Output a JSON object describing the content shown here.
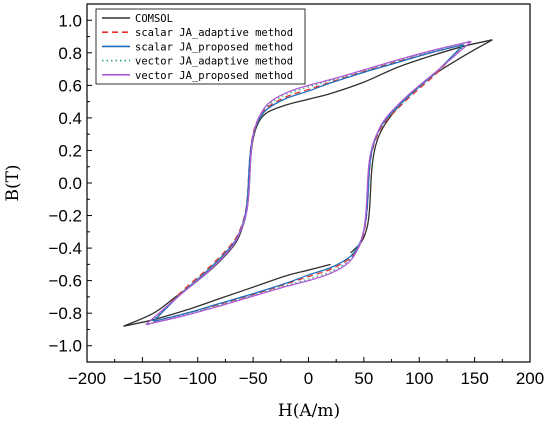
{
  "chart_data": {
    "type": "line",
    "title": "",
    "xlabel": "H(A/m)",
    "ylabel": "B(T)",
    "xlim": [
      -200,
      200
    ],
    "ylim": [
      -1.1,
      1.1
    ],
    "xticks": [
      -200,
      -150,
      -100,
      -50,
      0,
      50,
      100,
      150,
      200
    ],
    "yticks": [
      1.0,
      0.8,
      0.6,
      0.4,
      0.2,
      0.0,
      -0.2,
      -0.4,
      -0.6,
      -0.8,
      -1.0
    ],
    "xtick_labels": [
      "−200",
      "−150",
      "−100",
      "−50",
      "0",
      "50",
      "100",
      "150",
      "200"
    ],
    "ytick_labels": [
      "1.0",
      "0.8",
      "0.6",
      "0.4",
      "0.2",
      "0.0",
      "−0.2",
      "−0.4",
      "−0.6",
      "−0.8",
      "−1.0"
    ],
    "legend_position": "top-left",
    "grid": false,
    "series": [
      {
        "name": "COMSOL",
        "color": "#303030",
        "dash": "solid",
        "descending": [
          [
            166,
            0.88
          ],
          [
            140,
            0.84
          ],
          [
            110,
            0.78
          ],
          [
            80,
            0.71
          ],
          [
            50,
            0.62
          ],
          [
            20,
            0.55
          ],
          [
            0,
            0.515
          ],
          [
            -20,
            0.48
          ],
          [
            -38,
            0.43
          ],
          [
            -46,
            0.36
          ],
          [
            -50,
            0.27
          ],
          [
            -52,
            0.17
          ],
          [
            -53,
            0.05
          ],
          [
            -54,
            -0.07
          ],
          [
            -56,
            -0.18
          ],
          [
            -60,
            -0.28
          ],
          [
            -66,
            -0.37
          ],
          [
            -80,
            -0.48
          ],
          [
            -100,
            -0.6
          ],
          [
            -120,
            -0.7
          ],
          [
            -140,
            -0.8
          ],
          [
            -167,
            -0.88
          ]
        ],
        "ascending": [
          [
            -167,
            -0.88
          ],
          [
            -140,
            -0.84
          ],
          [
            -110,
            -0.78
          ],
          [
            -80,
            -0.71
          ],
          [
            -50,
            -0.64
          ],
          [
            -20,
            -0.57
          ],
          [
            0,
            -0.535
          ],
          [
            20,
            -0.5
          ]
        ],
        "upper_ascending": [
          [
            38,
            -0.43
          ],
          [
            48,
            -0.36
          ],
          [
            53,
            -0.27
          ],
          [
            55,
            -0.17
          ],
          [
            56,
            -0.05
          ],
          [
            57,
            0.07
          ],
          [
            59,
            0.18
          ],
          [
            63,
            0.28
          ],
          [
            70,
            0.37
          ],
          [
            85,
            0.5
          ],
          [
            110,
            0.65
          ],
          [
            140,
            0.78
          ],
          [
            166,
            0.88
          ]
        ]
      },
      {
        "name": "scalar JA_adaptive method",
        "color": "#e8302a",
        "dash": "dashed",
        "descending": [
          [
            140,
            0.85
          ],
          [
            110,
            0.8
          ],
          [
            80,
            0.745
          ],
          [
            50,
            0.685
          ],
          [
            20,
            0.62
          ],
          [
            0,
            0.575
          ],
          [
            -20,
            0.53
          ],
          [
            -38,
            0.46
          ],
          [
            -47,
            0.37
          ],
          [
            -51,
            0.27
          ],
          [
            -53,
            0.16
          ],
          [
            -54,
            0.05
          ],
          [
            -55,
            -0.07
          ],
          [
            -57,
            -0.18
          ],
          [
            -62,
            -0.29
          ],
          [
            -70,
            -0.38
          ],
          [
            -90,
            -0.52
          ],
          [
            -115,
            -0.67
          ],
          [
            -140,
            -0.85
          ]
        ],
        "ascending": [
          [
            -140,
            -0.85
          ],
          [
            -110,
            -0.8
          ],
          [
            -80,
            -0.745
          ],
          [
            -50,
            -0.685
          ],
          [
            -20,
            -0.62
          ],
          [
            0,
            -0.575
          ],
          [
            20,
            -0.53
          ],
          [
            38,
            -0.46
          ],
          [
            47,
            -0.37
          ],
          [
            51,
            -0.27
          ],
          [
            53,
            -0.16
          ],
          [
            54,
            -0.05
          ],
          [
            55,
            0.07
          ],
          [
            57,
            0.18
          ],
          [
            62,
            0.29
          ],
          [
            70,
            0.38
          ],
          [
            90,
            0.52
          ],
          [
            115,
            0.67
          ],
          [
            140,
            0.85
          ]
        ]
      },
      {
        "name": "scalar JA_proposed method",
        "color": "#1f6fbf",
        "dash": "solid",
        "descending": [
          [
            140,
            0.85
          ],
          [
            110,
            0.8
          ],
          [
            80,
            0.74
          ],
          [
            50,
            0.68
          ],
          [
            20,
            0.615
          ],
          [
            0,
            0.565
          ],
          [
            -20,
            0.52
          ],
          [
            -38,
            0.45
          ],
          [
            -47,
            0.36
          ],
          [
            -51,
            0.26
          ],
          [
            -53,
            0.15
          ],
          [
            -54,
            0.04
          ],
          [
            -55,
            -0.08
          ],
          [
            -57,
            -0.19
          ],
          [
            -62,
            -0.3
          ],
          [
            -70,
            -0.39
          ],
          [
            -90,
            -0.53
          ],
          [
            -115,
            -0.68
          ],
          [
            -140,
            -0.85
          ]
        ],
        "ascending": [
          [
            -140,
            -0.85
          ],
          [
            -110,
            -0.8
          ],
          [
            -80,
            -0.74
          ],
          [
            -50,
            -0.68
          ],
          [
            -20,
            -0.615
          ],
          [
            0,
            -0.565
          ],
          [
            20,
            -0.52
          ],
          [
            38,
            -0.45
          ],
          [
            47,
            -0.36
          ],
          [
            51,
            -0.26
          ],
          [
            53,
            -0.15
          ],
          [
            54,
            -0.04
          ],
          [
            55,
            0.08
          ],
          [
            57,
            0.19
          ],
          [
            62,
            0.3
          ],
          [
            70,
            0.39
          ],
          [
            90,
            0.53
          ],
          [
            115,
            0.68
          ],
          [
            140,
            0.85
          ]
        ]
      },
      {
        "name": "vector JA_adaptive method",
        "color": "#2aa57a",
        "dash": "dotted",
        "descending": [
          [
            145,
            0.87
          ],
          [
            115,
            0.815
          ],
          [
            85,
            0.76
          ],
          [
            55,
            0.7
          ],
          [
            25,
            0.64
          ],
          [
            0,
            0.59
          ],
          [
            -20,
            0.545
          ],
          [
            -36,
            0.48
          ],
          [
            -45,
            0.39
          ],
          [
            -50,
            0.28
          ],
          [
            -52,
            0.17
          ],
          [
            -53,
            0.05
          ],
          [
            -54,
            -0.07
          ],
          [
            -56,
            -0.18
          ],
          [
            -61,
            -0.29
          ],
          [
            -70,
            -0.39
          ],
          [
            -90,
            -0.53
          ],
          [
            -115,
            -0.68
          ],
          [
            -145,
            -0.87
          ]
        ],
        "ascending": [
          [
            -145,
            -0.87
          ],
          [
            -115,
            -0.815
          ],
          [
            -85,
            -0.76
          ],
          [
            -55,
            -0.7
          ],
          [
            -25,
            -0.64
          ],
          [
            0,
            -0.59
          ],
          [
            20,
            -0.545
          ],
          [
            36,
            -0.48
          ],
          [
            45,
            -0.39
          ],
          [
            50,
            -0.28
          ],
          [
            52,
            -0.17
          ],
          [
            53,
            -0.05
          ],
          [
            54,
            0.07
          ],
          [
            56,
            0.18
          ],
          [
            61,
            0.29
          ],
          [
            70,
            0.39
          ],
          [
            90,
            0.53
          ],
          [
            115,
            0.68
          ],
          [
            145,
            0.87
          ]
        ]
      },
      {
        "name": "vector JA_proposed method",
        "color": "#b05ad8",
        "dash": "solid",
        "descending": [
          [
            147,
            0.87
          ],
          [
            115,
            0.82
          ],
          [
            85,
            0.765
          ],
          [
            55,
            0.705
          ],
          [
            25,
            0.645
          ],
          [
            0,
            0.6
          ],
          [
            -20,
            0.555
          ],
          [
            -36,
            0.49
          ],
          [
            -45,
            0.4
          ],
          [
            -50,
            0.29
          ],
          [
            -52,
            0.17
          ],
          [
            -53,
            0.05
          ],
          [
            -54,
            -0.07
          ],
          [
            -56,
            -0.18
          ],
          [
            -61,
            -0.29
          ],
          [
            -70,
            -0.4
          ],
          [
            -90,
            -0.54
          ],
          [
            -118,
            -0.7
          ],
          [
            -147,
            -0.87
          ]
        ],
        "ascending": [
          [
            -147,
            -0.87
          ],
          [
            -115,
            -0.82
          ],
          [
            -85,
            -0.765
          ],
          [
            -55,
            -0.705
          ],
          [
            -25,
            -0.645
          ],
          [
            0,
            -0.6
          ],
          [
            20,
            -0.555
          ],
          [
            36,
            -0.49
          ],
          [
            45,
            -0.4
          ],
          [
            50,
            -0.29
          ],
          [
            52,
            -0.17
          ],
          [
            53,
            -0.05
          ],
          [
            54,
            0.07
          ],
          [
            56,
            0.18
          ],
          [
            61,
            0.29
          ],
          [
            70,
            0.4
          ],
          [
            90,
            0.54
          ],
          [
            118,
            0.7
          ],
          [
            147,
            0.87
          ]
        ]
      }
    ]
  }
}
